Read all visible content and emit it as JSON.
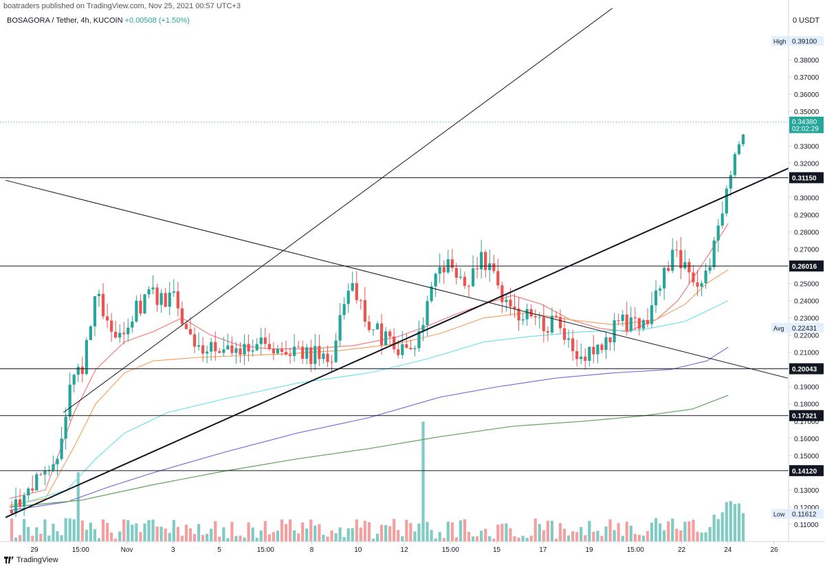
{
  "header": {
    "published": "boatraders published on TradingView.com, Nov 25, 2021 00:57 UTC+3",
    "symbol": "BOSAGORA / Tether, 4h, KUCOIN",
    "change": "+0.00508 (+1.50%)",
    "unit": "0 USDT"
  },
  "footer": {
    "brand": "TradingView"
  },
  "chart_data": {
    "type": "candlestick",
    "ylim": [
      0.1,
      0.41
    ],
    "y_ticks": [
      "0.11000",
      "0.12000",
      "0.13000",
      "0.15000",
      "0.16000",
      "0.17000",
      "0.18000",
      "0.19000",
      "0.21000",
      "0.22000",
      "0.23000",
      "0.24000",
      "0.25000",
      "0.27000",
      "0.28000",
      "0.29000",
      "0.30000",
      "0.32000",
      "0.33000",
      "0.35000",
      "0.36000",
      "0.37000",
      "0.38000"
    ],
    "x_ticks": [
      "29",
      "15:00",
      "Nov",
      "3",
      "5",
      "15:00",
      "8",
      "10",
      "12",
      "15:00",
      "15",
      "17",
      "19",
      "15:00",
      "22",
      "24",
      "26"
    ],
    "horizontal_levels": [
      {
        "value": 0.3115,
        "label": "0.31150"
      },
      {
        "value": 0.26016,
        "label": "0.26016"
      },
      {
        "value": 0.20043,
        "label": "0.20043"
      },
      {
        "value": 0.17321,
        "label": "0.17321"
      },
      {
        "value": 0.1412,
        "label": "0.14120"
      }
    ],
    "price_labels": [
      {
        "name": "High",
        "value": "0.39100",
        "y": 0.391
      },
      {
        "name": "Avg",
        "value": "0.22431",
        "y": 0.22431
      },
      {
        "name": "Low",
        "value": "0.11612",
        "y": 0.11612
      }
    ],
    "last_price": {
      "value": "0.34380",
      "y": 0.3438,
      "countdown": "02:02:29"
    },
    "colors": {
      "up": "#26a69a",
      "down": "#ef5350",
      "vol_up": "#80cbc4",
      "vol_down": "#f4a0a0",
      "ma1": "#f57c7c",
      "ma2": "#f5a462",
      "ma3": "#6fe3ef",
      "ma4": "#7a6fdc",
      "ma5": "#5ea35e"
    },
    "moving_averages": [
      {
        "color": "ma1",
        "points": [
          [
            0.0,
            0.125
          ],
          [
            0.05,
            0.13
          ],
          [
            0.09,
            0.175
          ],
          [
            0.12,
            0.2
          ],
          [
            0.16,
            0.216
          ],
          [
            0.2,
            0.222
          ],
          [
            0.24,
            0.23
          ],
          [
            0.28,
            0.22
          ],
          [
            0.32,
            0.214
          ],
          [
            0.36,
            0.212
          ],
          [
            0.42,
            0.212
          ],
          [
            0.48,
            0.214
          ],
          [
            0.54,
            0.219
          ],
          [
            0.58,
            0.225
          ],
          [
            0.62,
            0.232
          ],
          [
            0.66,
            0.238
          ],
          [
            0.7,
            0.243
          ],
          [
            0.74,
            0.238
          ],
          [
            0.78,
            0.229
          ],
          [
            0.82,
            0.224
          ],
          [
            0.86,
            0.222
          ],
          [
            0.9,
            0.229
          ],
          [
            0.93,
            0.24
          ],
          [
            0.97,
            0.265
          ],
          [
            1.0,
            0.285
          ]
        ]
      },
      {
        "color": "ma2",
        "points": [
          [
            0.0,
            0.121
          ],
          [
            0.05,
            0.125
          ],
          [
            0.09,
            0.155
          ],
          [
            0.12,
            0.18
          ],
          [
            0.16,
            0.198
          ],
          [
            0.2,
            0.205
          ],
          [
            0.26,
            0.207
          ],
          [
            0.32,
            0.208
          ],
          [
            0.38,
            0.209
          ],
          [
            0.46,
            0.211
          ],
          [
            0.54,
            0.215
          ],
          [
            0.6,
            0.221
          ],
          [
            0.66,
            0.23
          ],
          [
            0.72,
            0.233
          ],
          [
            0.78,
            0.229
          ],
          [
            0.84,
            0.226
          ],
          [
            0.9,
            0.229
          ],
          [
            0.94,
            0.238
          ],
          [
            0.97,
            0.25
          ],
          [
            1.0,
            0.258
          ]
        ]
      },
      {
        "color": "ma3",
        "points": [
          [
            0.0,
            0.12
          ],
          [
            0.08,
            0.13
          ],
          [
            0.12,
            0.148
          ],
          [
            0.16,
            0.163
          ],
          [
            0.22,
            0.175
          ],
          [
            0.3,
            0.183
          ],
          [
            0.4,
            0.192
          ],
          [
            0.5,
            0.198
          ],
          [
            0.58,
            0.206
          ],
          [
            0.66,
            0.216
          ],
          [
            0.72,
            0.219
          ],
          [
            0.8,
            0.222
          ],
          [
            0.88,
            0.223
          ],
          [
            0.94,
            0.228
          ],
          [
            1.0,
            0.24
          ]
        ]
      },
      {
        "color": "ma4",
        "points": [
          [
            0.0,
            0.118
          ],
          [
            0.08,
            0.123
          ],
          [
            0.14,
            0.132
          ],
          [
            0.2,
            0.14
          ],
          [
            0.3,
            0.152
          ],
          [
            0.4,
            0.163
          ],
          [
            0.5,
            0.172
          ],
          [
            0.6,
            0.184
          ],
          [
            0.68,
            0.19
          ],
          [
            0.76,
            0.195
          ],
          [
            0.84,
            0.198
          ],
          [
            0.92,
            0.2
          ],
          [
            0.97,
            0.205
          ],
          [
            1.0,
            0.213
          ]
        ]
      },
      {
        "color": "ma5",
        "points": [
          [
            0.0,
            0.12
          ],
          [
            0.1,
            0.124
          ],
          [
            0.2,
            0.133
          ],
          [
            0.3,
            0.141
          ],
          [
            0.4,
            0.148
          ],
          [
            0.5,
            0.154
          ],
          [
            0.6,
            0.161
          ],
          [
            0.7,
            0.167
          ],
          [
            0.8,
            0.17
          ],
          [
            0.88,
            0.173
          ],
          [
            0.95,
            0.177
          ],
          [
            1.0,
            0.185
          ]
        ]
      }
    ],
    "candles": []
  }
}
